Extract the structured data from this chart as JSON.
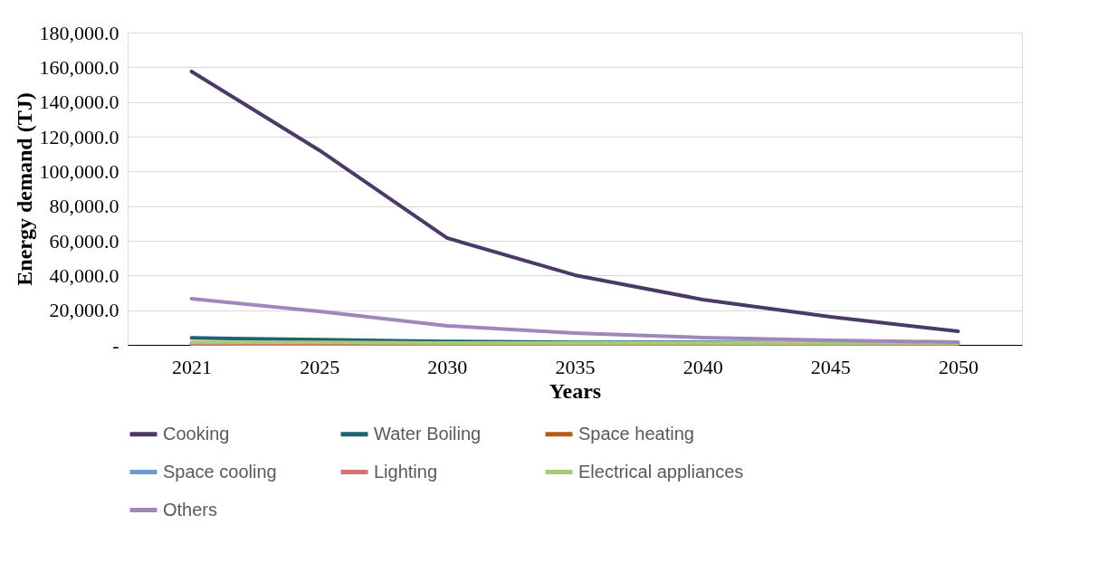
{
  "chart_data": {
    "type": "line",
    "xlabel": "Years",
    "ylabel": "Energy demand (TJ)",
    "categories": [
      "2021",
      "2025",
      "2030",
      "2035",
      "2040",
      "2045",
      "2050"
    ],
    "series": [
      {
        "name": "Cooking",
        "color": "#4b3a66",
        "values": [
          157600,
          112200,
          61600,
          40200,
          26100,
          16200,
          7800
        ]
      },
      {
        "name": "Water Boiling",
        "color": "#1f6272",
        "values": [
          4000,
          3000,
          2000,
          1500,
          1500,
          1000,
          1000
        ]
      },
      {
        "name": "Space heating",
        "color": "#bb5a12",
        "values": [
          null,
          null,
          null,
          null,
          null,
          null,
          null
        ]
      },
      {
        "name": "Space cooling",
        "color": "#6f9bd1",
        "values": [
          null,
          null,
          null,
          null,
          null,
          null,
          null
        ]
      },
      {
        "name": "Lighting",
        "color": "#d27272",
        "values": [
          500,
          500,
          500,
          500,
          500,
          500,
          500
        ]
      },
      {
        "name": "Electrical appliances",
        "color": "#a9c878",
        "values": [
          1500,
          1500,
          1000,
          1000,
          1000,
          1000,
          1000
        ]
      },
      {
        "name": "Others",
        "color": "#9f87be",
        "values": [
          26600,
          19300,
          11000,
          6800,
          4200,
          2600,
          1600
        ]
      }
    ],
    "ylim": [
      0,
      180000
    ],
    "yticks": [
      {
        "value": 0,
        "label": "-"
      },
      {
        "value": 20000,
        "label": "20,000.0"
      },
      {
        "value": 40000,
        "label": "40,000.0"
      },
      {
        "value": 60000,
        "label": "60,000.0"
      },
      {
        "value": 80000,
        "label": "80,000.0"
      },
      {
        "value": 100000,
        "label": "100,000.0"
      },
      {
        "value": 120000,
        "label": "120,000.0"
      },
      {
        "value": 140000,
        "label": "140,000.0"
      },
      {
        "value": 160000,
        "label": "160,000.0"
      },
      {
        "value": 180000,
        "label": "180,000.0"
      }
    ],
    "grid": "y",
    "legend": "bottom",
    "marker": "none",
    "line_style": "solid"
  }
}
